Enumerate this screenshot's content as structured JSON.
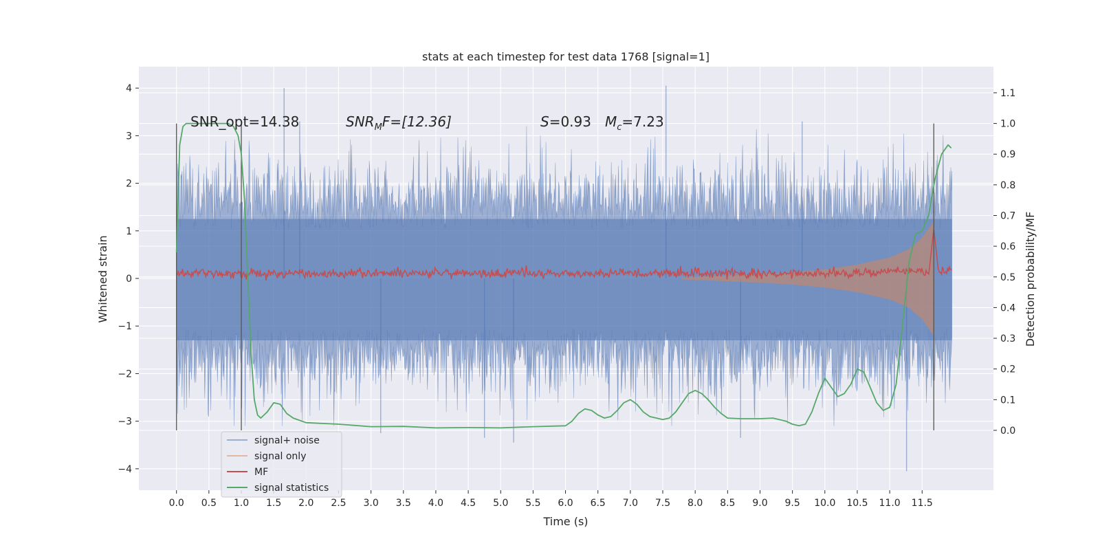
{
  "chart_data": {
    "type": "line",
    "title": "stats at each timestep for test data 1768 [signal=1]",
    "xlabel": "Time (s)",
    "ylabel": "Whitened strain",
    "y2label": "Detection probability/MF",
    "xlim": [
      -0.58,
      12.6
    ],
    "ylim": [
      -4.45,
      4.45
    ],
    "y2lim": [
      -0.195,
      1.185
    ],
    "x_ticks": [
      "0.0",
      "0.5",
      "1.0",
      "1.5",
      "2.0",
      "2.5",
      "3.0",
      "3.5",
      "4.0",
      "4.5",
      "5.0",
      "5.5",
      "6.0",
      "6.5",
      "7.0",
      "7.5",
      "8.0",
      "8.5",
      "9.0",
      "9.5",
      "10.0",
      "10.5",
      "11.0",
      "11.5"
    ],
    "y_ticks": [
      "4",
      "3",
      "2",
      "1",
      "0",
      "−1",
      "−2",
      "−3",
      "−4"
    ],
    "y2_ticks": [
      "1.1",
      "1.0",
      "0.9",
      "0.8",
      "0.7",
      "0.6",
      "0.5",
      "0.4",
      "0.3",
      "0.2",
      "0.1",
      "0.0"
    ],
    "grid": true,
    "legend_position": "lower-left",
    "background": "#eaeaf2",
    "annotations": {
      "snr_opt": "SNR_opt=14.38",
      "snr_mf_base": "SNR",
      "snr_mf_sub": "M",
      "snr_mf_rest": "F=[12.36]",
      "s_label": "S",
      "s_value": "=0.93",
      "mc_base": "M",
      "mc_sub": "c",
      "mc_value": "=7.23"
    },
    "vlines_seconds": [
      0.0,
      1.0,
      11.68
    ],
    "series": [
      {
        "name": "signal+ noise",
        "color": "#4c72b0",
        "alpha": 0.5,
        "axis": "left",
        "envelope_note": "dense noisy strain, |y| mostly < 2.6 with occasional spikes up to about 4.0",
        "spikes": [
          [
            1.66,
            4.0
          ],
          [
            7.55,
            4.05
          ],
          [
            11.26,
            -4.05
          ],
          [
            5.2,
            -3.45
          ],
          [
            8.7,
            -3.35
          ],
          [
            4.75,
            -3.35
          ],
          [
            3.15,
            -3.25
          ],
          [
            1.9,
            3.3
          ],
          [
            9.65,
            3.3
          ]
        ]
      },
      {
        "name": "signal only",
        "color": "#dd8452",
        "alpha": 0.5,
        "axis": "left",
        "chirp_envelope_x": [
          7.8,
          8.5,
          9.0,
          9.5,
          10.0,
          10.5,
          11.0,
          11.3,
          11.5,
          11.6,
          11.68
        ],
        "chirp_envelope_y": [
          0.02,
          0.06,
          0.09,
          0.13,
          0.19,
          0.29,
          0.44,
          0.62,
          0.86,
          1.05,
          1.2
        ]
      },
      {
        "name": "MF",
        "color": "#c44e52",
        "alpha": 1.0,
        "axis": "left",
        "baseline": 0.1,
        "noise_amplitude": 0.12,
        "peak": [
          11.68,
          1.0
        ]
      },
      {
        "name": "signal statistics",
        "color": "#55a868",
        "alpha": 1.0,
        "axis": "right",
        "x": [
          0.0,
          0.05,
          0.1,
          0.15,
          0.2,
          0.3,
          0.5,
          0.7,
          0.8,
          0.88,
          0.95,
          1.0,
          1.05,
          1.1,
          1.15,
          1.2,
          1.25,
          1.3,
          1.35,
          1.4,
          1.5,
          1.6,
          1.65,
          1.7,
          1.8,
          2.0,
          2.3,
          2.5,
          3.0,
          3.5,
          4.0,
          4.5,
          5.0,
          5.5,
          6.0,
          6.1,
          6.2,
          6.3,
          6.4,
          6.5,
          6.6,
          6.7,
          6.8,
          6.9,
          7.0,
          7.1,
          7.2,
          7.3,
          7.5,
          7.6,
          7.7,
          7.8,
          7.9,
          8.0,
          8.1,
          8.2,
          8.3,
          8.4,
          8.5,
          8.7,
          9.0,
          9.2,
          9.4,
          9.5,
          9.6,
          9.7,
          9.8,
          9.9,
          10.0,
          10.1,
          10.2,
          10.3,
          10.4,
          10.5,
          10.6,
          10.7,
          10.8,
          10.9,
          11.0,
          11.1,
          11.2,
          11.3,
          11.4,
          11.5,
          11.6,
          11.7,
          11.8,
          11.9,
          11.95
        ],
        "y": [
          0.58,
          0.93,
          0.99,
          1.0,
          1.0,
          1.0,
          1.0,
          1.0,
          1.0,
          0.99,
          0.96,
          0.9,
          0.75,
          0.5,
          0.25,
          0.1,
          0.05,
          0.04,
          0.05,
          0.06,
          0.09,
          0.085,
          0.07,
          0.055,
          0.04,
          0.025,
          0.022,
          0.02,
          0.012,
          0.013,
          0.008,
          0.009,
          0.008,
          0.012,
          0.015,
          0.03,
          0.055,
          0.07,
          0.065,
          0.05,
          0.04,
          0.045,
          0.065,
          0.09,
          0.1,
          0.085,
          0.06,
          0.045,
          0.035,
          0.04,
          0.06,
          0.09,
          0.12,
          0.13,
          0.12,
          0.1,
          0.075,
          0.055,
          0.04,
          0.038,
          0.038,
          0.04,
          0.03,
          0.02,
          0.015,
          0.02,
          0.06,
          0.12,
          0.17,
          0.14,
          0.11,
          0.12,
          0.15,
          0.2,
          0.19,
          0.14,
          0.09,
          0.065,
          0.075,
          0.15,
          0.35,
          0.55,
          0.64,
          0.65,
          0.7,
          0.82,
          0.9,
          0.93,
          0.92
        ]
      }
    ]
  }
}
